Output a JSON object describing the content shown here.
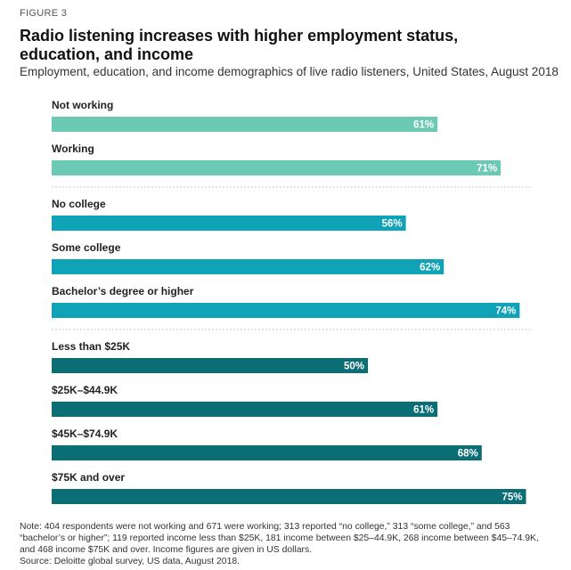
{
  "figure_label": "FIGURE 3",
  "title": "Radio listening increases with higher employment status, education, and income",
  "subtitle": "Employment, education, and income demographics of live radio listeners, United States, August 2018",
  "chart_data": {
    "type": "bar",
    "orientation": "horizontal",
    "xlim": [
      0,
      75
    ],
    "grid": false,
    "groups": [
      {
        "color": "#6cc9b3",
        "bars": [
          {
            "label": "Not working",
            "value": 61,
            "display": "61%"
          },
          {
            "label": "Working",
            "value": 71,
            "display": "71%"
          }
        ]
      },
      {
        "color": "#10a3b8",
        "bars": [
          {
            "label": "No college",
            "value": 56,
            "display": "56%"
          },
          {
            "label": "Some college",
            "value": 62,
            "display": "62%"
          },
          {
            "label": "Bachelor’s degree or higher",
            "value": 74,
            "display": "74%"
          }
        ]
      },
      {
        "color": "#0b6e75",
        "bars": [
          {
            "label": "Less than $25K",
            "value": 50,
            "display": "50%"
          },
          {
            "label": "$25K–$44.9K",
            "value": 61,
            "display": "61%"
          },
          {
            "label": "$45K–$74.9K",
            "value": 68,
            "display": "68%"
          },
          {
            "label": "$75K and over",
            "value": 75,
            "display": "75%"
          }
        ]
      }
    ]
  },
  "note": "Note: 404 respondents were not working and 671 were working; 313 reported “no college,” 313 “some college,” and 563 “bachelor’s or higher”; 119 reported income less than $25K, 181 income between $25–44.9K, 268 income between $45–74.9K, and 468 income $75K and over. Income figures are given in US dollars.",
  "source": "Source: Deloitte global survey, US data, August 2018."
}
